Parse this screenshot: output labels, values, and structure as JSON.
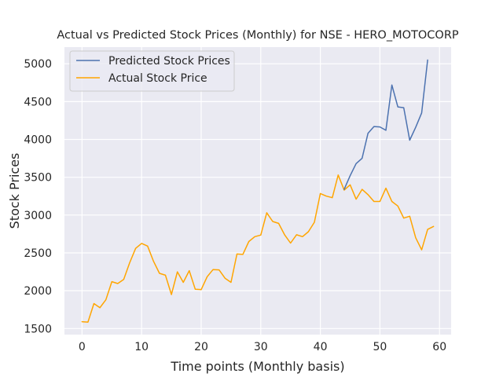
{
  "chart_data": {
    "type": "line",
    "title": "Actual vs Predicted Stock Prices (Monthly) for NSE - HERO_MOTOCORP",
    "xlabel": "Time points (Monthly basis)",
    "ylabel": "Stock Prices",
    "xlim": [
      -2.95,
      61.95
    ],
    "ylim": [
      1420,
      5220
    ],
    "xticks": [
      0,
      10,
      20,
      30,
      40,
      50,
      60
    ],
    "yticks": [
      1500,
      2000,
      2500,
      3000,
      3500,
      4000,
      4500,
      5000
    ],
    "grid": true,
    "legend_position": "top-left",
    "series": [
      {
        "name": "Predicted Stock Prices",
        "color": "#4c72b0",
        "x": [
          44,
          45,
          46,
          47,
          48,
          49,
          50,
          51,
          52,
          53,
          54,
          55,
          56,
          57,
          58
        ],
        "values": [
          3340,
          3520,
          3680,
          3750,
          4080,
          4170,
          4165,
          4120,
          4720,
          4430,
          4420,
          3990,
          4160,
          4350,
          5050
        ]
      },
      {
        "name": "Actual Stock Price",
        "color": "#ffa500",
        "x": [
          0,
          1,
          2,
          3,
          4,
          5,
          6,
          7,
          8,
          9,
          10,
          11,
          12,
          13,
          14,
          15,
          16,
          17,
          18,
          19,
          20,
          21,
          22,
          23,
          24,
          25,
          26,
          27,
          28,
          29,
          30,
          31,
          32,
          33,
          34,
          35,
          36,
          37,
          38,
          39,
          40,
          41,
          42,
          43,
          44,
          45,
          46,
          47,
          48,
          49,
          50,
          51,
          52,
          53,
          54,
          55,
          56,
          57,
          58,
          59
        ],
        "values": [
          1590,
          1585,
          1830,
          1775,
          1880,
          2120,
          2095,
          2150,
          2370,
          2560,
          2625,
          2590,
          2390,
          2230,
          2205,
          1950,
          2250,
          2110,
          2265,
          2020,
          2015,
          2185,
          2280,
          2275,
          2165,
          2110,
          2485,
          2480,
          2650,
          2715,
          2735,
          3030,
          2915,
          2890,
          2740,
          2630,
          2740,
          2715,
          2780,
          2905,
          3285,
          3250,
          3230,
          3530,
          3330,
          3400,
          3210,
          3340,
          3270,
          3180,
          3180,
          3355,
          3180,
          3120,
          2960,
          2985,
          2700,
          2540,
          2810,
          2850
        ]
      }
    ]
  }
}
